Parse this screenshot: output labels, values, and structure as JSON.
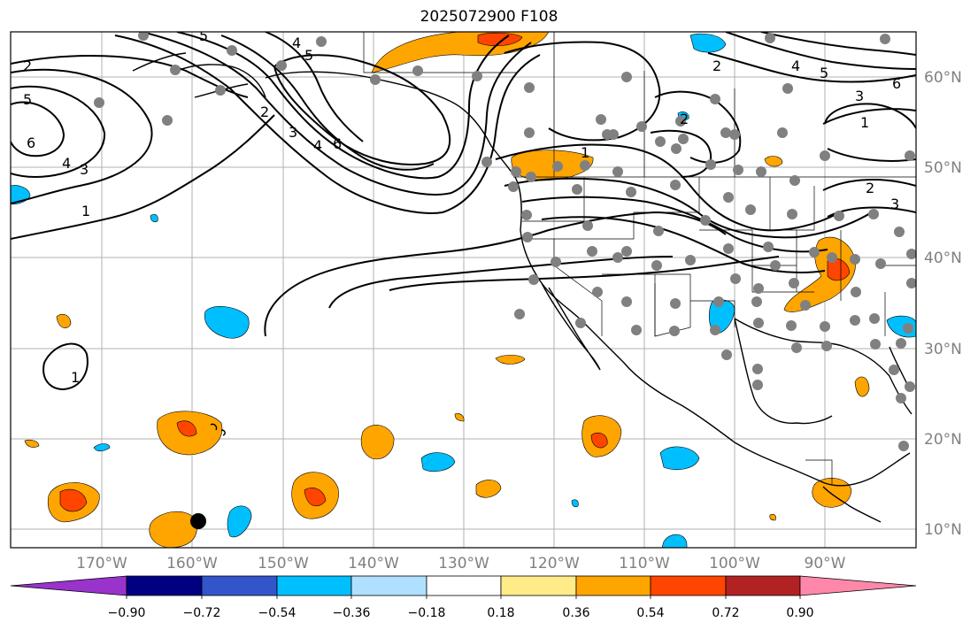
{
  "title": "2025072900 F108",
  "latitude_labels": [
    "60°N",
    "50°N",
    "40°N",
    "30°N",
    "20°N",
    "10°N"
  ],
  "longitude_labels": [
    "170°W",
    "160°W",
    "150°W",
    "140°W",
    "130°W",
    "120°W",
    "110°W",
    "100°W",
    "90°W"
  ],
  "colorbar": {
    "tick_labels": [
      "−0.90",
      "−0.72",
      "−0.54",
      "−0.36",
      "−0.18",
      "0.18",
      "0.36",
      "0.54",
      "0.72",
      "0.90"
    ],
    "colors": [
      "#9933cc",
      "#000080",
      "#3355cc",
      "#00bfff",
      "#b0e0ff",
      "#ffffff",
      "#ffeb88",
      "#ffa500",
      "#ff4500",
      "#b22222",
      "#ff88aa"
    ]
  },
  "contour_labels": [
    "1",
    "2",
    "3",
    "4",
    "5",
    "6"
  ],
  "colors": {
    "land_outline": "#000000",
    "grid": "#b0b0b0",
    "station_dot": "#808080",
    "marker": "#000000"
  }
}
